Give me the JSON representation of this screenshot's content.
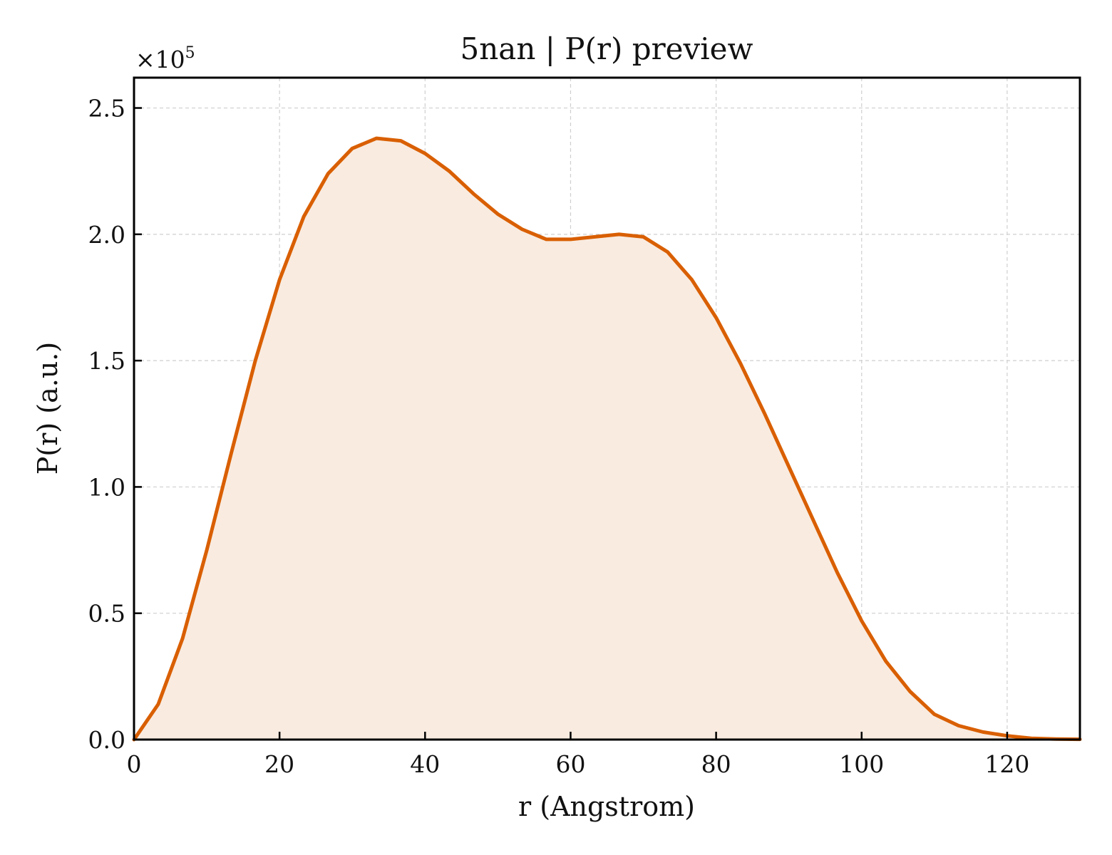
{
  "chart_data": {
    "type": "area",
    "title": "5nan | P(r) preview",
    "xlabel": "r (Angstrom)",
    "ylabel": "P(r) (a.u.)",
    "y_offset_text": "×10⁵",
    "y_offset_base": "×10",
    "y_offset_exp": "5",
    "xlim": [
      0,
      130
    ],
    "ylim": [
      0,
      2.62
    ],
    "x_ticks": [
      0,
      20,
      40,
      60,
      80,
      100,
      120
    ],
    "x_tick_labels": [
      "0",
      "20",
      "40",
      "60",
      "80",
      "100",
      "120"
    ],
    "y_ticks": [
      0,
      0.5,
      1.0,
      1.5,
      2.0,
      2.5
    ],
    "y_tick_labels": [
      "0.0",
      "0.5",
      "1.0",
      "1.5",
      "2.0",
      "2.5"
    ],
    "grid": true,
    "line_color": "#d95f02",
    "fill_color": "#f9ebe0",
    "series": [
      {
        "x": [
          0,
          3.33,
          6.67,
          10,
          13.33,
          16.67,
          20,
          23.33,
          26.67,
          30,
          33.33,
          36.67,
          40,
          43.33,
          46.67,
          50,
          53.33,
          56.67,
          60,
          63.33,
          66.67,
          70,
          73.33,
          76.67,
          80,
          83.33,
          86.67,
          90,
          93.33,
          96.67,
          100,
          103.33,
          106.67,
          110,
          113.33,
          116.67,
          120,
          123.33,
          126.67,
          130
        ],
        "y": [
          0.0,
          0.14,
          0.4,
          0.75,
          1.13,
          1.5,
          1.82,
          2.07,
          2.24,
          2.34,
          2.38,
          2.37,
          2.32,
          2.25,
          2.16,
          2.08,
          2.02,
          1.98,
          1.98,
          1.99,
          2.0,
          1.99,
          1.93,
          1.82,
          1.67,
          1.49,
          1.29,
          1.08,
          0.87,
          0.66,
          0.47,
          0.31,
          0.19,
          0.1,
          0.055,
          0.03,
          0.015,
          0.005,
          0.002,
          0.001
        ]
      }
    ]
  }
}
